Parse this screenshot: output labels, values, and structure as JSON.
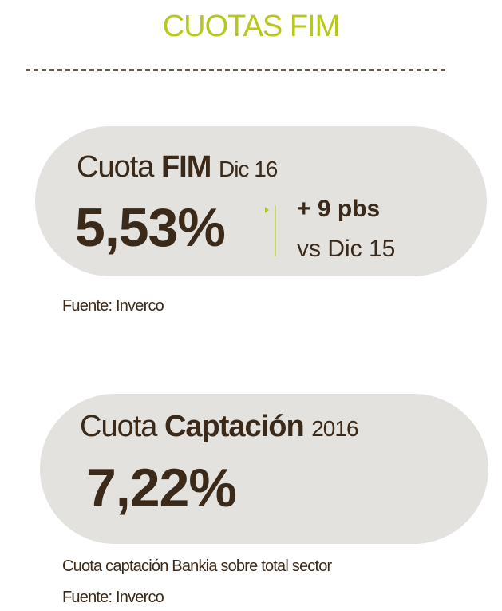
{
  "header": {
    "title": "CUOTAS FIM"
  },
  "cards": [
    {
      "label": "Cuota",
      "label_bold": "FIM",
      "period": "Dic 16",
      "value": "5,53%",
      "change": "+ 9 pbs",
      "change_ref": "vs Dic 15",
      "notes": [
        "Fuente: Inverco"
      ]
    },
    {
      "label": "Cuota",
      "label_bold": "Captación",
      "period": "2016",
      "value": "7,22%",
      "notes": [
        "Cuota captación Bankia sobre total sector",
        "Fuente: Inverco"
      ]
    }
  ]
}
